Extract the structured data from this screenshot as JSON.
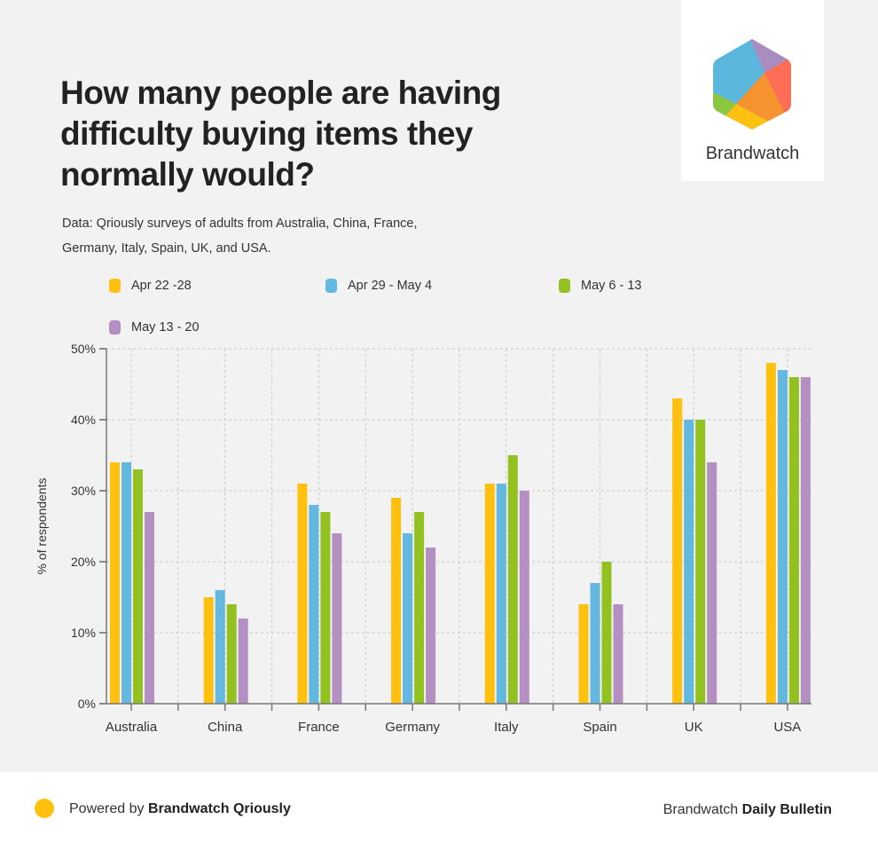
{
  "header": {
    "title": "How many people are having difficulty buying items they normally would?",
    "subtitle": "Data: Qriously surveys of adults from Australia, China, France, Germany, Italy, Spain, UK, and USA."
  },
  "logo": {
    "text": "Brandwatch",
    "icon": "brandwatch-hexagon-logo",
    "colors": [
      "#5bb7dd",
      "#a98cc0",
      "#fe6e57",
      "#f7932f",
      "#fdc111",
      "#8dc63f"
    ]
  },
  "chart_data": {
    "type": "bar",
    "title": "How many people are having difficulty buying items they normally would?",
    "xlabel": "",
    "ylabel": "% of respondents",
    "ylim": [
      0,
      50
    ],
    "yticks": [
      0,
      10,
      20,
      30,
      40,
      50
    ],
    "ytick_labels": [
      "0%",
      "10%",
      "20%",
      "30%",
      "40%",
      "50%"
    ],
    "grid": true,
    "legend_position": "top",
    "categories": [
      "Australia",
      "China",
      "France",
      "Germany",
      "Italy",
      "Spain",
      "UK",
      "USA"
    ],
    "series": [
      {
        "name": "Apr 22 -28",
        "color": "#ffc10e",
        "values": [
          34,
          15,
          31,
          29,
          31,
          14,
          43,
          48
        ]
      },
      {
        "name": "Apr 29 - May 4",
        "color": "#63b8e0",
        "values": [
          34,
          16,
          28,
          24,
          31,
          17,
          40,
          47
        ]
      },
      {
        "name": "May 6 - 13",
        "color": "#93c120",
        "values": [
          33,
          14,
          27,
          27,
          35,
          20,
          40,
          46
        ]
      },
      {
        "name": "May 13 - 20",
        "color": "#b48fc1",
        "values": [
          27,
          12,
          24,
          22,
          30,
          14,
          34,
          46
        ]
      }
    ]
  },
  "footer": {
    "powered_prefix": "Powered by ",
    "powered_brand": "Brandwatch Qriously",
    "right_prefix": "Brandwatch ",
    "right_bold": "Daily Bulletin",
    "dot_color": "#ffc10e"
  }
}
